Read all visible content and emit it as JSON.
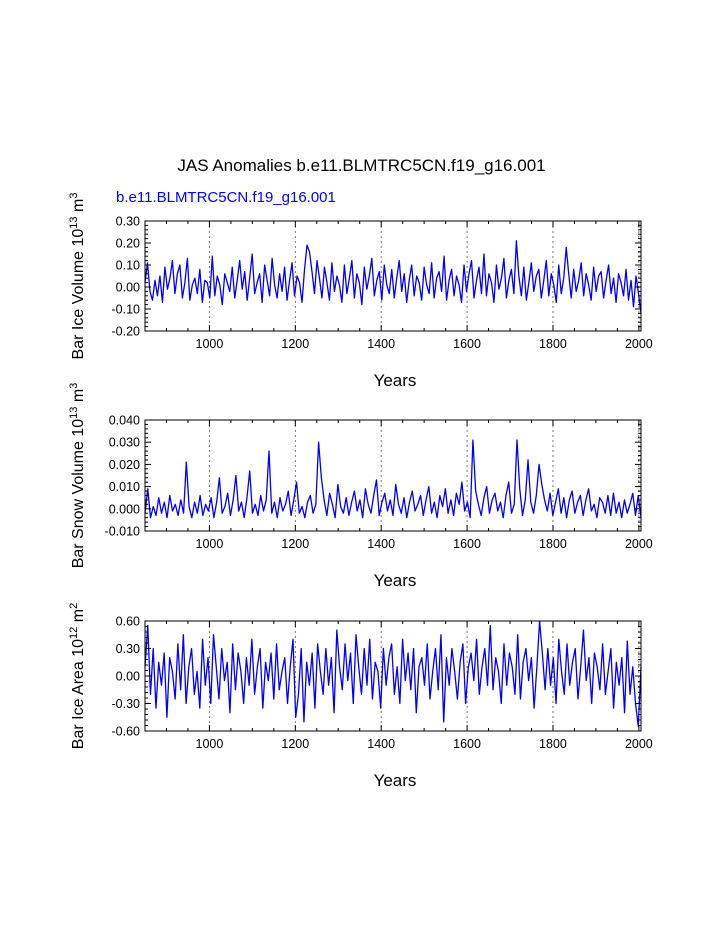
{
  "title": "JAS Anomalies b.e11.BLMTRC5CN.f19_g16.001",
  "subtitle": "b.e11.BLMTRC5CN.f19_g16.001",
  "colors": {
    "series": "#0000ff",
    "axes": "#000000",
    "grid": "#555555"
  },
  "chart_data": [
    {
      "type": "line",
      "title": "b.e11.BLMTRC5CN.f19_g16.001",
      "xlabel": "Years",
      "ylabel_parts": {
        "base": "Bar Ice Volume 10",
        "exp": "13",
        "unit": " m",
        "unit_exp": "3"
      },
      "xlim": [
        850,
        2005
      ],
      "ylim": [
        -0.2,
        0.3
      ],
      "xticks": [
        1000,
        1200,
        1400,
        1600,
        1800,
        2000
      ],
      "xtick_labels": [
        "1000",
        "1200",
        "1400",
        "1600",
        "1800",
        "2000"
      ],
      "yticks": [
        -0.2,
        -0.1,
        0.0,
        0.1,
        0.2,
        0.3
      ],
      "ytick_labels": [
        "-0.20",
        "-0.10",
        "0.00",
        "0.10",
        "0.20",
        "0.30"
      ],
      "grid_x": true,
      "series": [
        {
          "name": "b.e11.BLMTRC5CN.f19_g16.001",
          "x_start": 850,
          "x_end": 2005,
          "values": [
            0.02,
            0.11,
            -0.02,
            -0.06,
            0.03,
            -0.04,
            0.05,
            -0.07,
            0.09,
            -0.01,
            0.04,
            0.12,
            -0.03,
            0.06,
            0.1,
            -0.05,
            0.02,
            0.13,
            -0.06,
            0.01,
            0.04,
            -0.03,
            0.08,
            -0.07,
            0.03,
            0.02,
            -0.05,
            0.14,
            -0.04,
            0.05,
            0.01,
            -0.08,
            0.06,
            0.02,
            -0.02,
            0.09,
            -0.05,
            0.03,
            0.12,
            -0.01,
            0.07,
            -0.06,
            0.04,
            0.15,
            -0.03,
            0.02,
            0.06,
            -0.07,
            0.1,
            0.03,
            -0.04,
            0.13,
            0.01,
            -0.05,
            0.06,
            -0.02,
            0.09,
            -0.06,
            0.03,
            0.11,
            -0.04,
            0.05,
            0.02,
            -0.07,
            0.08,
            0.19,
            0.16,
            0.07,
            -0.03,
            0.12,
            0.04,
            -0.05,
            0.09,
            0.02,
            -0.06,
            0.11,
            -0.02,
            0.05,
            0.01,
            -0.07,
            0.1,
            -0.03,
            0.04,
            0.12,
            -0.05,
            0.06,
            0.02,
            -0.08,
            0.09,
            -0.01,
            0.05,
            0.13,
            -0.04,
            0.03,
            0.07,
            -0.06,
            0.1,
            0.01,
            -0.03,
            0.08,
            -0.05,
            0.04,
            0.12,
            -0.02,
            0.06,
            -0.07,
            0.03,
            0.1,
            -0.04,
            0.05,
            0.02,
            -0.06,
            0.09,
            0.01,
            -0.03,
            0.11,
            -0.05,
            0.04,
            0.07,
            -0.02,
            0.14,
            -0.06,
            0.03,
            0.08,
            -0.04,
            0.05,
            0.01,
            -0.07,
            0.1,
            -0.02,
            0.06,
            0.12,
            -0.05,
            0.03,
            0.09,
            -0.03,
            0.15,
            -0.04,
            0.06,
            0.02,
            -0.07,
            0.1,
            -0.01,
            0.04,
            0.13,
            -0.05,
            0.03,
            0.08,
            -0.03,
            0.21,
            0.05,
            -0.04,
            0.09,
            -0.06,
            0.02,
            0.11,
            -0.02,
            0.05,
            0.08,
            -0.05,
            0.03,
            0.12,
            -0.04,
            0.06,
            0.01,
            -0.07,
            0.1,
            -0.03,
            0.04,
            0.18,
            0.06,
            -0.05,
            0.08,
            -0.02,
            0.03,
            0.11,
            -0.04,
            0.06,
            0.01,
            -0.06,
            0.09,
            -0.02,
            0.05,
            0.07,
            -0.05,
            0.03,
            0.1,
            -0.03,
            0.04,
            -0.07,
            0.06,
            0.02,
            -0.04,
            0.08,
            -0.06,
            0.03,
            -0.09,
            0.05,
            -0.03,
            -0.12
          ]
        }
      ]
    },
    {
      "type": "line",
      "xlabel": "Years",
      "ylabel_parts": {
        "base": "Bar Snow Volume 10",
        "exp": "13",
        "unit": " m",
        "unit_exp": "3"
      },
      "xlim": [
        850,
        2005
      ],
      "ylim": [
        -0.01,
        0.04
      ],
      "xticks": [
        1000,
        1200,
        1400,
        1600,
        1800,
        2000
      ],
      "xtick_labels": [
        "1000",
        "1200",
        "1400",
        "1600",
        "1800",
        "2000"
      ],
      "yticks": [
        -0.01,
        0.0,
        0.01,
        0.02,
        0.03,
        0.04
      ],
      "ytick_labels": [
        "-0.010",
        "0.000",
        "0.010",
        "0.020",
        "0.030",
        "0.040"
      ],
      "grid_x": true,
      "series": [
        {
          "name": "b.e11.BLMTRC5CN.f19_g16.001",
          "x_start": 850,
          "x_end": 2005,
          "values": [
            -0.002,
            0.009,
            -0.004,
            0.001,
            -0.003,
            0.005,
            -0.002,
            0.003,
            -0.004,
            0.006,
            -0.001,
            0.002,
            -0.003,
            0.004,
            -0.002,
            0.021,
            0.001,
            -0.004,
            0.003,
            -0.002,
            0.006,
            -0.003,
            0.002,
            -0.001,
            0.005,
            -0.004,
            0.003,
            0.014,
            -0.002,
            0.001,
            0.007,
            -0.003,
            0.004,
            0.015,
            -0.001,
            0.003,
            -0.004,
            0.005,
            0.017,
            -0.002,
            0.002,
            -0.003,
            0.006,
            -0.001,
            0.004,
            0.026,
            -0.002,
            0.003,
            -0.004,
            0.005,
            -0.001,
            0.002,
            0.008,
            -0.003,
            0.004,
            0.012,
            -0.002,
            0.001,
            -0.004,
            0.003,
            0.006,
            -0.002,
            0.002,
            0.03,
            0.014,
            0.004,
            -0.003,
            0.007,
            0.002,
            -0.004,
            0.011,
            0.001,
            -0.002,
            0.005,
            -0.003,
            0.003,
            0.008,
            -0.001,
            0.004,
            -0.004,
            0.009,
            0.002,
            -0.002,
            0.006,
            0.013,
            -0.003,
            0.003,
            0.007,
            -0.001,
            0.004,
            -0.003,
            0.011,
            0.002,
            -0.002,
            0.005,
            -0.004,
            0.003,
            0.008,
            -0.001,
            0.002,
            0.006,
            -0.003,
            0.004,
            0.01,
            -0.002,
            0.003,
            -0.004,
            0.006,
            0.001,
            0.009,
            -0.002,
            0.004,
            -0.003,
            0.007,
            0.002,
            0.012,
            -0.001,
            0.003,
            -0.004,
            0.031,
            0.008,
            0.002,
            -0.003,
            0.005,
            0.01,
            -0.002,
            0.004,
            0.007,
            -0.001,
            0.003,
            -0.004,
            0.006,
            0.012,
            -0.002,
            0.002,
            0.031,
            0.009,
            -0.003,
            0.004,
            0.022,
            0.003,
            -0.002,
            0.006,
            0.02,
            0.011,
            0.004,
            -0.001,
            0.007,
            -0.003,
            0.003,
            0.009,
            -0.002,
            0.005,
            -0.004,
            0.004,
            0.008,
            -0.002,
            0.003,
            0.006,
            -0.003,
            0.004,
            0.009,
            -0.001,
            0.002,
            -0.004,
            0.005,
            0.003,
            -0.002,
            0.006,
            -0.003,
            0.007,
            -0.002,
            0.003,
            -0.004,
            0.004,
            -0.002,
            0.002,
            0.007,
            -0.003,
            0.006,
            -0.004
          ]
        }
      ]
    },
    {
      "type": "line",
      "xlabel": "Years",
      "ylabel_parts": {
        "base": "Bar Ice Area 10",
        "exp": "12",
        "unit": " m",
        "unit_exp": "2"
      },
      "xlim": [
        850,
        2005
      ],
      "ylim": [
        -0.6,
        0.6
      ],
      "xticks": [
        1000,
        1200,
        1400,
        1600,
        1800,
        2000
      ],
      "xtick_labels": [
        "1000",
        "1200",
        "1400",
        "1600",
        "1800",
        "2000"
      ],
      "yticks": [
        -0.6,
        -0.3,
        0.0,
        0.3,
        0.6
      ],
      "ytick_labels": [
        "-0.60",
        "-0.30",
        "0.00",
        "0.30",
        "0.60"
      ],
      "grid_x": true,
      "series": [
        {
          "name": "b.e11.BLMTRC5CN.f19_g16.001",
          "x_start": 850,
          "x_end": 2005,
          "values": [
            0.1,
            0.55,
            -0.2,
            0.3,
            -0.35,
            0.15,
            -0.1,
            0.25,
            -0.45,
            0.2,
            0.05,
            -0.25,
            0.35,
            -0.15,
            0.45,
            -0.3,
            0.1,
            0.3,
            -0.2,
            0.05,
            -0.35,
            0.4,
            -0.1,
            0.2,
            -0.3,
            0.45,
            0.1,
            -0.25,
            0.3,
            -0.05,
            0.15,
            -0.4,
            0.35,
            -0.15,
            0.25,
            0.05,
            -0.3,
            0.2,
            -0.1,
            0.4,
            -0.2,
            0.1,
            0.3,
            -0.35,
            0.15,
            -0.05,
            0.25,
            -0.25,
            0.35,
            -0.15,
            0.05,
            0.2,
            -0.3,
            0.1,
            0.4,
            -0.45,
            -0.2,
            0.3,
            -0.5,
            0.15,
            -0.1,
            0.25,
            -0.35,
            0.35,
            0.05,
            -0.2,
            0.3,
            -0.1,
            0.2,
            -0.4,
            0.5,
            0.1,
            -0.15,
            0.35,
            -0.05,
            0.25,
            -0.3,
            0.45,
            0.1,
            -0.2,
            0.3,
            -0.1,
            0.4,
            -0.25,
            0.15,
            0.05,
            -0.35,
            0.3,
            -0.1,
            0.2,
            0.35,
            -0.2,
            0.1,
            -0.3,
            0.4,
            -0.05,
            0.25,
            -0.15,
            0.3,
            -0.4,
            0.1,
            0.2,
            -0.1,
            0.35,
            -0.25,
            0.05,
            0.3,
            -0.15,
            0.45,
            -0.5,
            0.2,
            -0.1,
            0.3,
            0.05,
            -0.25,
            0.15,
            0.35,
            -0.3,
            0.1,
            0.25,
            -0.05,
            0.4,
            -0.2,
            0.1,
            0.3,
            -0.1,
            0.55,
            -0.15,
            0.2,
            0.05,
            -0.3,
            0.35,
            -0.1,
            0.25,
            0.1,
            -0.2,
            0.45,
            -0.25,
            0.15,
            0.3,
            -0.05,
            0.2,
            -0.35,
            0.1,
            0.6,
            0.25,
            -0.15,
            0.3,
            -0.1,
            0.2,
            -0.3,
            0.4,
            0.05,
            -0.2,
            0.35,
            -0.1,
            0.15,
            0.3,
            -0.25,
            0.1,
            0.5,
            -0.05,
            0.2,
            -0.3,
            0.25,
            0.1,
            -0.15,
            0.35,
            -0.2,
            0.05,
            0.3,
            -0.35,
            0.15,
            -0.1,
            0.2,
            -0.4,
            0.38,
            -0.2,
            0.1,
            -0.3,
            -0.55,
            0.1
          ]
        }
      ]
    }
  ]
}
